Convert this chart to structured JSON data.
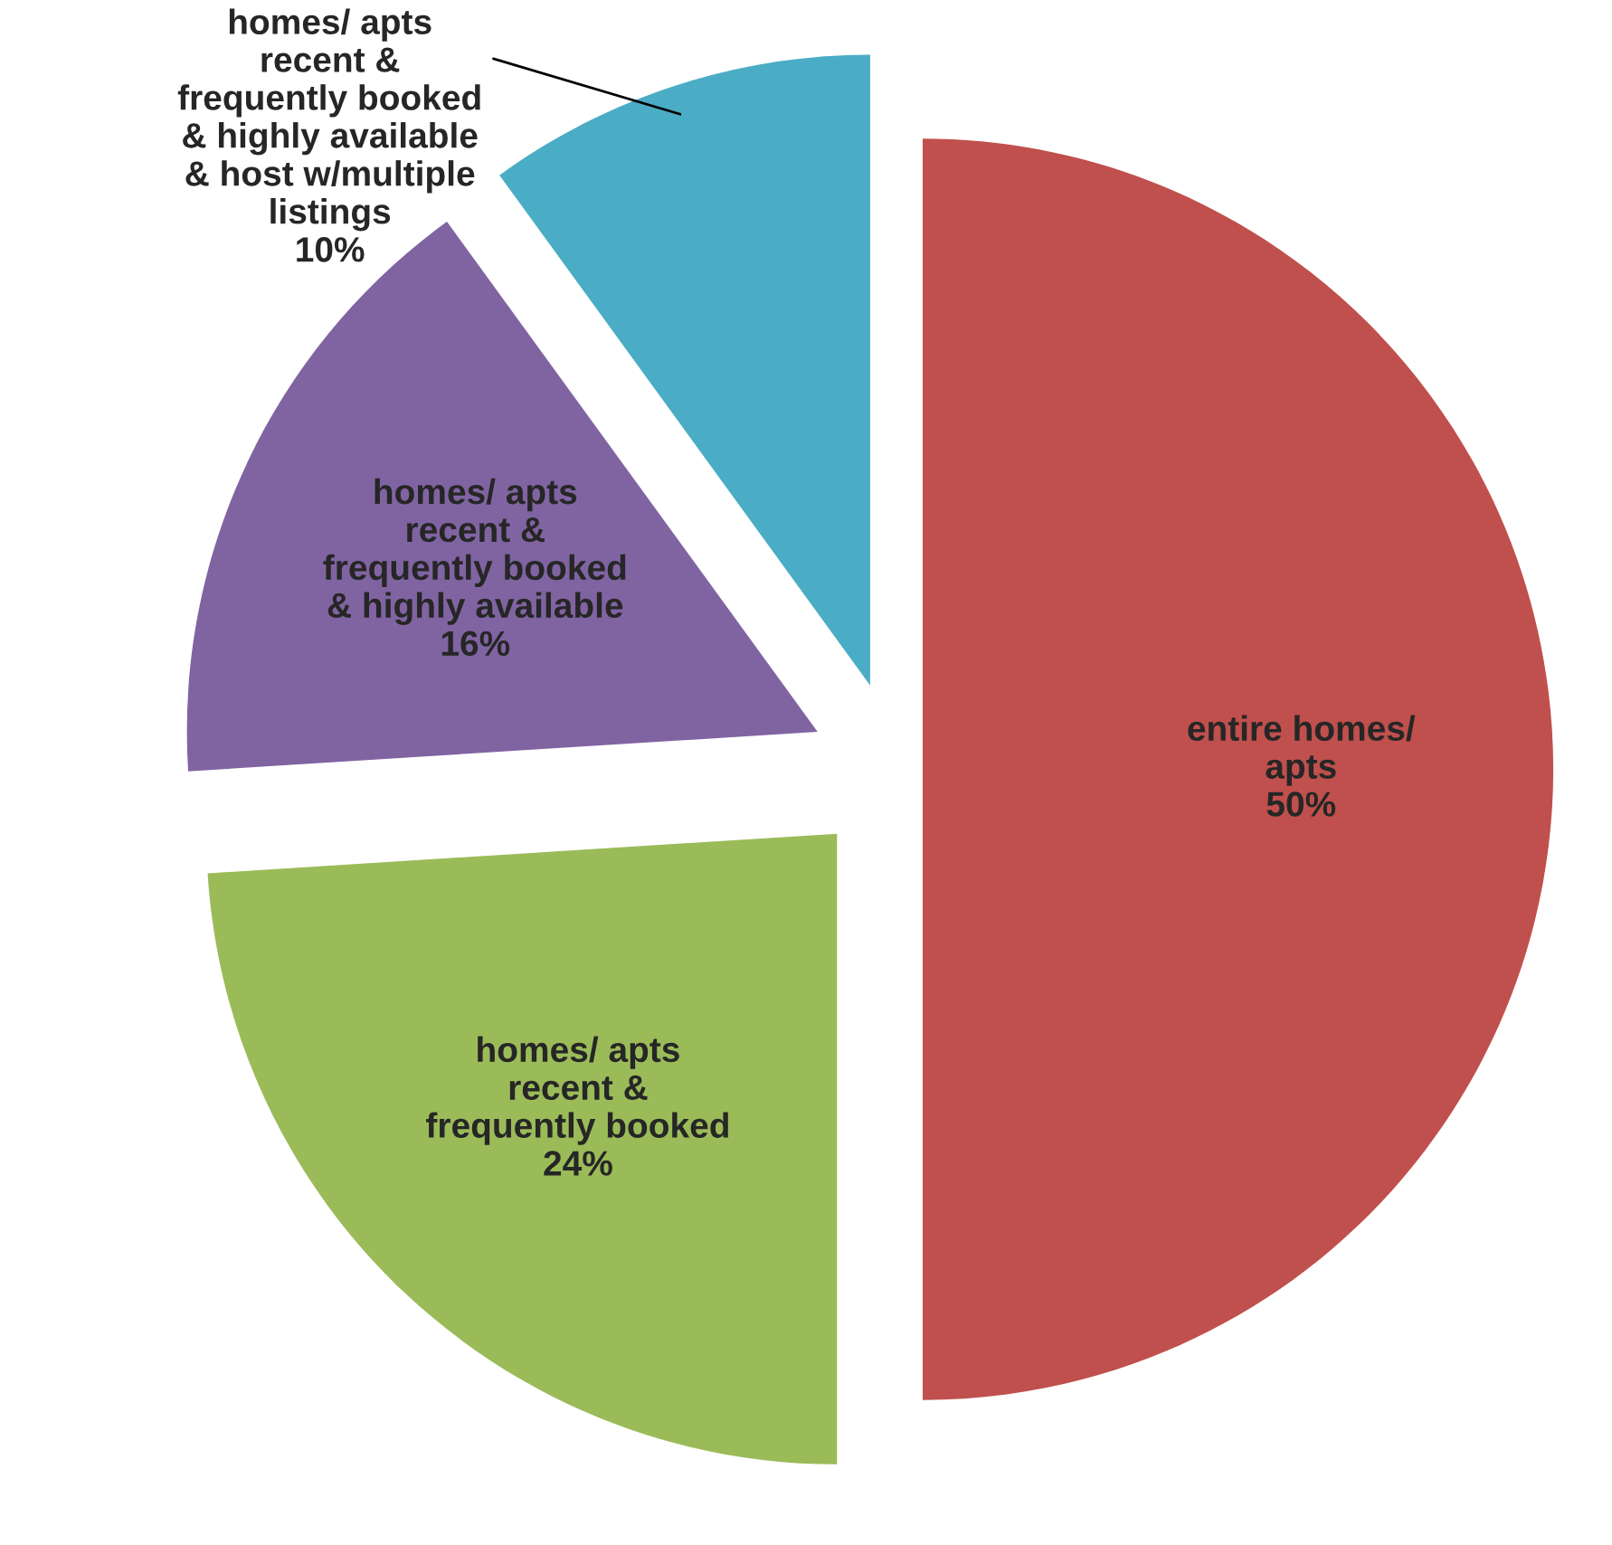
{
  "chart_data": {
    "type": "pie",
    "categories": [
      "entire homes/\napts",
      "homes/ apts\nrecent &\nfrequently booked",
      "homes/ apts\nrecent &\nfrequently booked\n& highly available",
      "homes/ apts\nrecent &\nfrequently booked\n& highly available\n& host w/multiple\nlistings"
    ],
    "values": [
      50,
      24,
      16,
      10
    ],
    "value_labels": [
      "50%",
      "24%",
      "16%",
      "10%"
    ],
    "colors": [
      "#c0504d",
      "#9bbb59",
      "#8064a2",
      "#4bacc6"
    ]
  }
}
